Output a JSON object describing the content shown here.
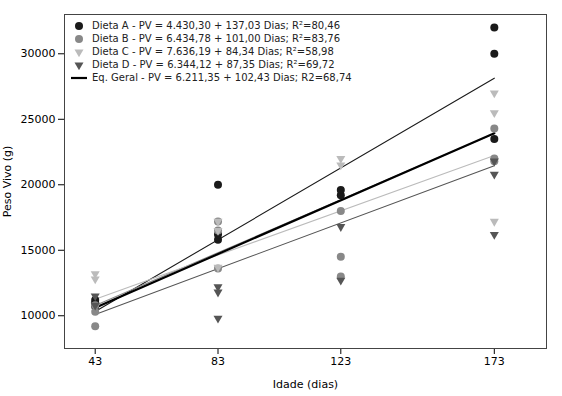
{
  "chart_data": {
    "type": "scatter",
    "xlabel": "Idade (dias)",
    "ylabel": "Peso Vivo (g)",
    "xlim": [
      33,
      190
    ],
    "ylim": [
      7500,
      33000
    ],
    "xticks": [
      43,
      83,
      123,
      173
    ],
    "yticks": [
      10000,
      15000,
      20000,
      25000,
      30000
    ],
    "grid": false,
    "legend": "upper left",
    "series": [
      {
        "name": "Dieta A - PV = 4.430,30 + 137,03 Dias; R²=80,46",
        "type": "scatter",
        "color": "#1a1a1a",
        "marker": "circle",
        "x": [
          43,
          43,
          43,
          83,
          83,
          83,
          123,
          123,
          173,
          173,
          173
        ],
        "values": [
          11000,
          10700,
          11200,
          20000,
          15800,
          16200,
          19200,
          19600,
          32000,
          30000,
          23500
        ],
        "fit": {
          "x": [
            43,
            173
          ],
          "values": [
            10322.59,
            28136.49
          ]
        }
      },
      {
        "name": "Dieta B - PV = 6.434,78 + 101,00 Dias; R²=83,76",
        "type": "scatter",
        "color": "#888888",
        "marker": "circle",
        "x": [
          43,
          43,
          43,
          83,
          83,
          83,
          123,
          123,
          123,
          173,
          173,
          173
        ],
        "values": [
          10300,
          9200,
          10800,
          17200,
          16500,
          13600,
          18000,
          14500,
          13000,
          24300,
          21800,
          22000
        ],
        "fit": {
          "x": [
            43,
            173
          ],
          "values": [
            10777.78,
            23907.78
          ]
        }
      },
      {
        "name": "Dieta C - PV = 7.636,19 + 84,34 Dias; R²=58,98",
        "type": "scatter",
        "color": "#bbbbbb",
        "marker": "triangle-down",
        "x": [
          43,
          43,
          83,
          83,
          83,
          123,
          123,
          173,
          173,
          173
        ],
        "values": [
          13200,
          12800,
          17200,
          16500,
          13700,
          21500,
          22000,
          27000,
          25500,
          17200
        ],
        "fit": {
          "x": [
            43,
            173
          ],
          "values": [
            11262.81,
            22227.01
          ]
        }
      },
      {
        "name": "Dieta D - PV = 6.344,12 + 87,35 Dias; R²=69,72",
        "type": "scatter",
        "color": "#555555",
        "marker": "triangle-down",
        "x": [
          43,
          43,
          83,
          83,
          83,
          123,
          123,
          173,
          173,
          173
        ],
        "values": [
          11500,
          10800,
          9800,
          11800,
          12200,
          12700,
          16800,
          21800,
          16200,
          20800
        ],
        "fit": {
          "x": [
            43,
            173
          ],
          "values": [
            10100.17,
            21455.67
          ]
        }
      },
      {
        "name": "Eq. Geral - PV = 6.211,35 + 102,43 Dias; R2=68,74",
        "type": "line",
        "color": "#000000",
        "x": [
          43,
          173
        ],
        "values": [
          10615.84,
          23931.74
        ]
      }
    ]
  }
}
